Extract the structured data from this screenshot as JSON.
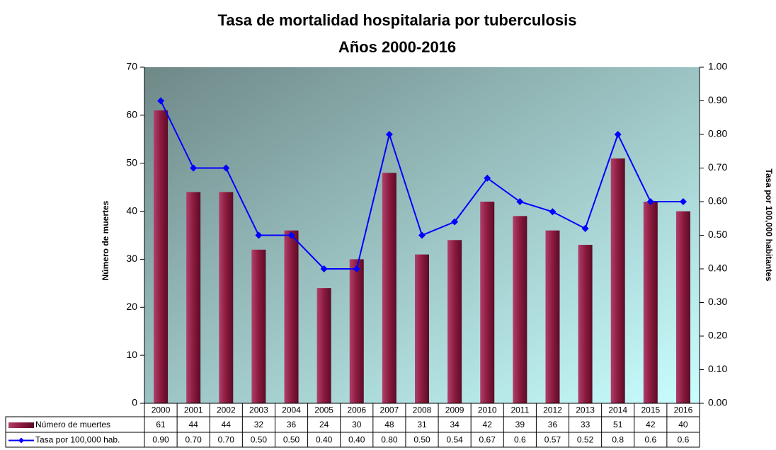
{
  "chart_data": {
    "type": "bar",
    "title": "Tasa de mortalidad hospitalaria por tuberculosis",
    "subtitle": "Años 2000-2016",
    "y_label": "Número de muertes",
    "y2_label": "Tasa por 100,000 habitantes",
    "categories": [
      "2000",
      "2001",
      "2002",
      "2003",
      "2004",
      "2005",
      "2006",
      "2007",
      "2008",
      "2009",
      "2010",
      "2011",
      "2012",
      "2013",
      "2014",
      "2015",
      "2016"
    ],
    "series": [
      {
        "name": "Número de muertes",
        "type": "bar",
        "color": "#8b1a3e",
        "values": [
          61,
          44,
          44,
          32,
          36,
          24,
          30,
          48,
          31,
          34,
          42,
          39,
          36,
          33,
          51,
          42,
          40
        ]
      },
      {
        "name": "Tasa por 100,000 hab.",
        "type": "line",
        "axis": "y2",
        "color": "#0000ff",
        "values": [
          0.9,
          0.7,
          0.7,
          0.5,
          0.5,
          0.4,
          0.4,
          0.8,
          0.5,
          0.54,
          0.67,
          0.6,
          0.57,
          0.52,
          0.8,
          0.6,
          0.6
        ],
        "value_labels": [
          "0.90",
          "0.70",
          "0.70",
          "0.50",
          "0.50",
          "0.40",
          "0.40",
          "0.80",
          "0.50",
          "0.54",
          "0.67",
          "0.6",
          "0.57",
          "0.52",
          "0.8",
          "0.6",
          "0.6"
        ]
      }
    ],
    "ylim": [
      0,
      70
    ],
    "yticks": [
      0,
      10,
      20,
      30,
      40,
      50,
      60,
      70
    ],
    "y2lim": [
      0,
      1
    ],
    "y2ticks": [
      {
        "value": 0,
        "label": "0.00"
      },
      {
        "value": 0.1,
        "label": "0.10"
      },
      {
        "value": 0.2,
        "label": "0.20"
      },
      {
        "value": 0.3,
        "label": "0.30"
      },
      {
        "value": 0.4,
        "label": "0.40"
      },
      {
        "value": 0.5,
        "label": "0.50"
      },
      {
        "value": 0.6,
        "label": "0.60"
      },
      {
        "value": 0.7,
        "label": "0.70"
      },
      {
        "value": 0.8,
        "label": "0.80"
      },
      {
        "value": 0.9,
        "label": "0.90"
      },
      {
        "value": 1,
        "label": "1.00"
      }
    ],
    "grid": false
  }
}
